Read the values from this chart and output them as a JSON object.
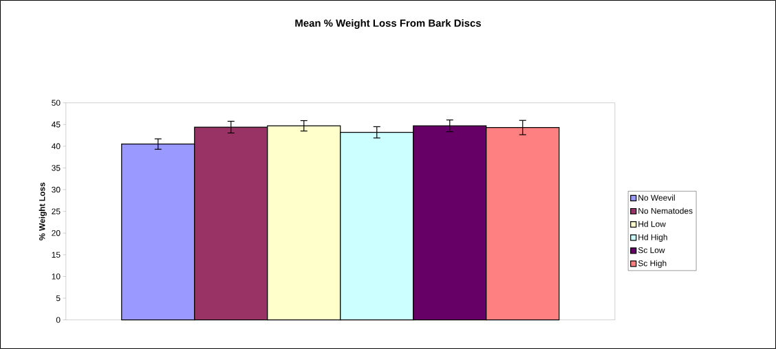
{
  "chart_data": {
    "type": "bar",
    "title": "Mean % Weight Loss From Bark Discs",
    "ylabel": "% Weight Loss",
    "categories": [
      null
    ],
    "series": [
      {
        "name": "No Weevil",
        "color": "#9999ff",
        "values": [
          40.5
        ],
        "errors": [
          1.2
        ]
      },
      {
        "name": "No Nematodes",
        "color": "#993366",
        "values": [
          44.4
        ],
        "errors": [
          1.35
        ]
      },
      {
        "name": "Hd Low",
        "color": "#ffffcc",
        "values": [
          44.7
        ],
        "errors": [
          1.2
        ]
      },
      {
        "name": "Hd High",
        "color": "#ccffff",
        "values": [
          43.2
        ],
        "errors": [
          1.3
        ]
      },
      {
        "name": "Sc Low",
        "color": "#660066",
        "values": [
          44.7
        ],
        "errors": [
          1.35
        ]
      },
      {
        "name": "Sc High",
        "color": "#ff8080",
        "values": [
          44.3
        ],
        "errors": [
          1.65
        ]
      }
    ],
    "ylim": [
      0,
      50
    ],
    "yticks": [
      0,
      5,
      10,
      15,
      20,
      25,
      30,
      35,
      40,
      45,
      50
    ],
    "grid": false,
    "legend": "right"
  }
}
